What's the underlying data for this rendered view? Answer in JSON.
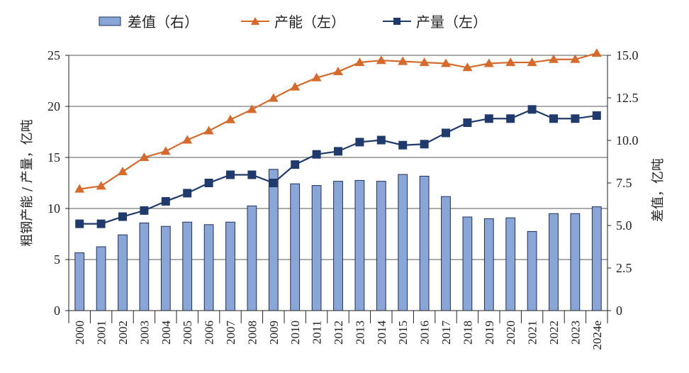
{
  "legend": {
    "diff": "差值（右）",
    "capacity": "产能（左）",
    "output": "产量（左）"
  },
  "colors": {
    "bar_fill": "#8aa6d6",
    "bar_stroke": "#1f2f5a",
    "capacity": "#d46a2c",
    "output": "#1f3a6b",
    "grid": "#555555"
  },
  "chart_data": {
    "type": "bar+line",
    "categories": [
      "2000",
      "2001",
      "2002",
      "2003",
      "2004",
      "2005",
      "2006",
      "2007",
      "2008",
      "2009",
      "2010",
      "2011",
      "2012",
      "2013",
      "2014",
      "2015",
      "2016",
      "2017",
      "2018",
      "2019",
      "2020",
      "2021",
      "2022",
      "2023",
      "2024e"
    ],
    "series": [
      {
        "name": "差值（右）",
        "type": "bar",
        "axis": "right",
        "values": [
          3.4,
          3.75,
          4.45,
          5.15,
          4.95,
          5.2,
          5.05,
          5.2,
          6.15,
          8.3,
          7.45,
          7.35,
          7.6,
          7.65,
          7.6,
          8.0,
          7.9,
          6.7,
          5.5,
          5.4,
          5.45,
          4.65,
          5.7,
          5.7,
          6.1
        ]
      },
      {
        "name": "产能（左）",
        "type": "line",
        "axis": "left",
        "marker": "triangle",
        "values": [
          11.9,
          12.2,
          13.6,
          15.0,
          15.6,
          16.7,
          17.6,
          18.7,
          19.7,
          20.8,
          21.9,
          22.8,
          23.4,
          24.3,
          24.5,
          24.4,
          24.3,
          24.2,
          23.8,
          24.2,
          24.3,
          24.3,
          24.6,
          24.6,
          25.2
        ]
      },
      {
        "name": "产量（左）",
        "type": "line",
        "axis": "left",
        "marker": "square",
        "values": [
          8.5,
          8.5,
          9.2,
          9.8,
          10.7,
          11.5,
          12.5,
          13.3,
          13.3,
          12.5,
          14.3,
          15.3,
          15.6,
          16.5,
          16.7,
          16.2,
          16.3,
          17.4,
          18.4,
          18.8,
          18.8,
          19.7,
          18.8,
          18.8,
          19.1
        ]
      }
    ],
    "ylabel_left": "粗钢产能 / 产量，亿吨",
    "ylabel_right": "差值，亿吨",
    "ylim_left": [
      0,
      25
    ],
    "ylim_right": [
      0,
      15
    ],
    "yticks_left": [
      "0",
      "5",
      "10",
      "15",
      "20",
      "25"
    ],
    "yticks_right": [
      "0",
      "2.5",
      "5.0",
      "7.5",
      "10.0",
      "12.5",
      "15.0"
    ],
    "grid": true,
    "legend_position": "top"
  }
}
